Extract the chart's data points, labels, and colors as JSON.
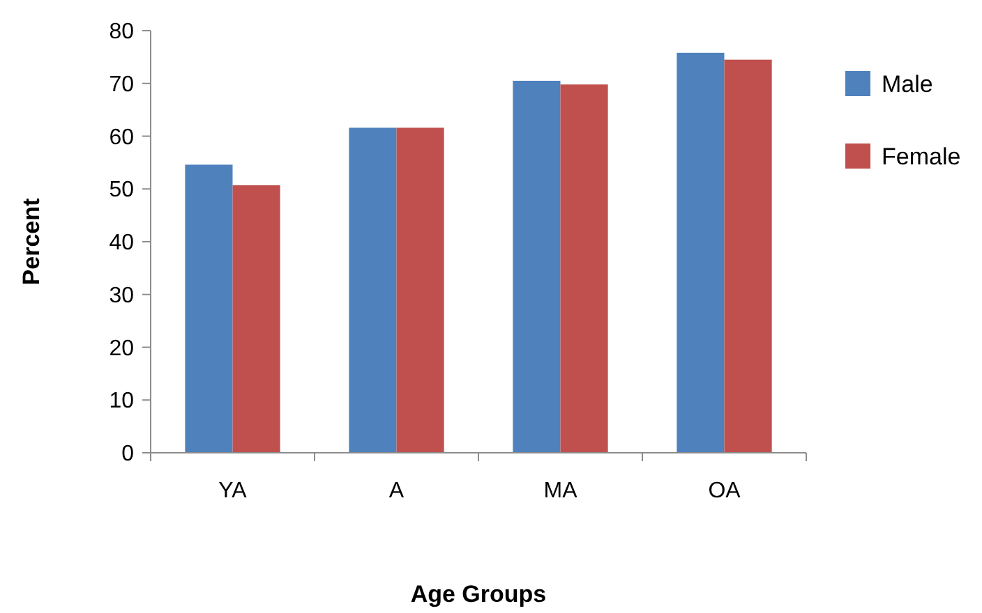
{
  "chart_data": {
    "type": "bar",
    "xlabel": "Age Groups",
    "ylabel": "Percent",
    "categories": [
      "YA",
      "A",
      "MA",
      "OA"
    ],
    "series": [
      {
        "name": "Male",
        "color": "#4f81bd",
        "values": [
          54.6,
          61.6,
          70.5,
          75.8
        ]
      },
      {
        "name": "Female",
        "color": "#c0504d",
        "values": [
          50.7,
          61.6,
          69.8,
          74.5
        ]
      }
    ],
    "ylim": [
      0,
      80
    ],
    "yticks": [
      0,
      10,
      20,
      30,
      40,
      50,
      60,
      70,
      80
    ],
    "grid": false,
    "legend": "right"
  }
}
